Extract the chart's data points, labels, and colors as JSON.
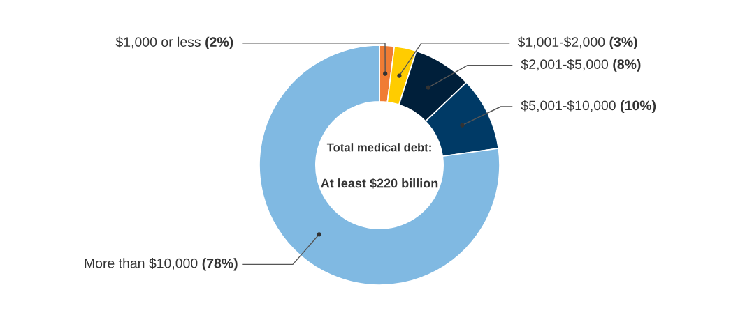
{
  "chart_data": {
    "type": "donut",
    "categories": [
      "$1,000 or less",
      "$1,001-$2,000",
      "$2,001-$5,000",
      "$5,001-$10,000",
      "More than $10,000"
    ],
    "values": [
      2,
      3,
      8,
      10,
      78
    ],
    "colors": [
      "#f07c34",
      "#ffcc00",
      "#001f3a",
      "#003a66",
      "#80b9e2"
    ],
    "value_labels": [
      "(2%)",
      "(3%)",
      "(8%)",
      "(10%)",
      "(78%)"
    ],
    "annotations": [
      "Total medical debt:",
      "At least $220 billion"
    ],
    "legend": false
  }
}
